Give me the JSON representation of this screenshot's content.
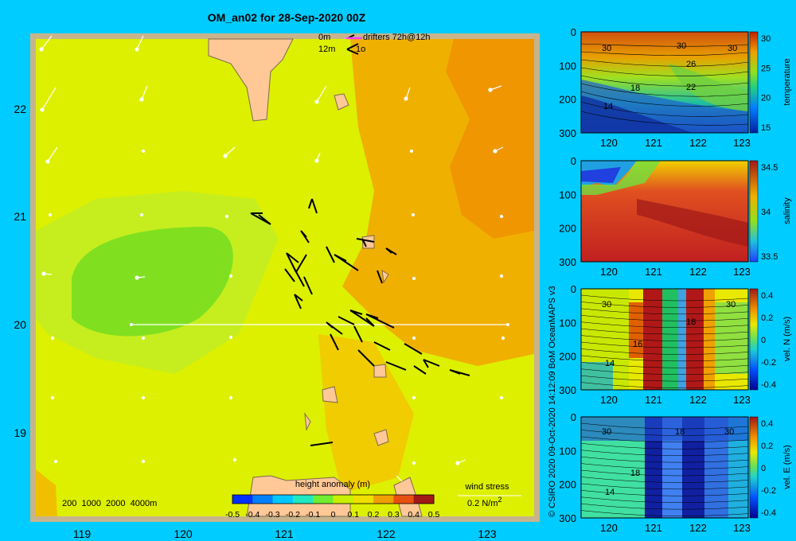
{
  "title": "OM_an02 for 28-Sep-2020 00Z",
  "map": {
    "x_ticks": [
      "119",
      "120",
      "121",
      "122",
      "123"
    ],
    "y_ticks": [
      "22",
      "21",
      "20",
      "19"
    ],
    "legend_top": {
      "row1_left": "0m",
      "row1_right": "drifters 72h@12h",
      "row2_left": "12m",
      "row2_right": "1o"
    },
    "depth_legend": "200  1000  2000  4000m",
    "colorbar": {
      "label": "height anomaly (m)",
      "ticks": [
        "-0.5",
        "-0.4",
        "-0.3",
        "-0.2",
        "-0.1",
        "0",
        "0.1",
        "0.2",
        "0.3",
        "0.4",
        "0.5"
      ],
      "colors": [
        "#00008f",
        "#0030ff",
        "#0080ff",
        "#00c8ff",
        "#20e8c0",
        "#70ee30",
        "#c8f000",
        "#f0e000",
        "#f0a000",
        "#e85010",
        "#a01818"
      ]
    },
    "wind_stress": {
      "label": "wind stress",
      "value": "0.2 N/m",
      "sup": "2"
    }
  },
  "side_credit": "© CSIRO 2020   09-Oct-2020 14:12:09 BoM OceanMAPS v3",
  "panels": [
    {
      "id": "temperature",
      "cb_label": "temperature",
      "cb_ticks": [
        "30",
        "25",
        "20",
        "15"
      ],
      "y_ticks": [
        "0",
        "100",
        "200",
        "300"
      ],
      "x_ticks": [
        "120",
        "121",
        "122",
        "123"
      ],
      "contour_labels": [
        "30",
        "30",
        "30",
        "26",
        "18",
        "14",
        "22"
      ]
    },
    {
      "id": "salinity",
      "cb_label": "salinity",
      "cb_ticks": [
        "34.5",
        "34",
        "33.5"
      ],
      "y_ticks": [
        "0",
        "100",
        "200",
        "300"
      ],
      "x_ticks": [
        "120",
        "121",
        "122",
        "123"
      ],
      "contour_labels": []
    },
    {
      "id": "velocity-north",
      "cb_label": "vel. N (m/s)",
      "cb_ticks": [
        "0.4",
        "0.2",
        "0",
        "-0.2",
        "-0.4"
      ],
      "y_ticks": [
        "0",
        "100",
        "200",
        "300"
      ],
      "x_ticks": [
        "120",
        "121",
        "122",
        "123"
      ],
      "contour_labels": [
        "30",
        "16",
        "30",
        "18",
        "14"
      ]
    },
    {
      "id": "velocity-east",
      "cb_label": "vel. E (m/s)",
      "cb_ticks": [
        "0.4",
        "0.2",
        "0",
        "-0.2",
        "-0.4"
      ],
      "y_ticks": [
        "0",
        "100",
        "200",
        "300"
      ],
      "x_ticks": [
        "120",
        "121",
        "122",
        "123"
      ],
      "contour_labels": [
        "30",
        "18",
        "30",
        "18",
        "14"
      ]
    }
  ]
}
